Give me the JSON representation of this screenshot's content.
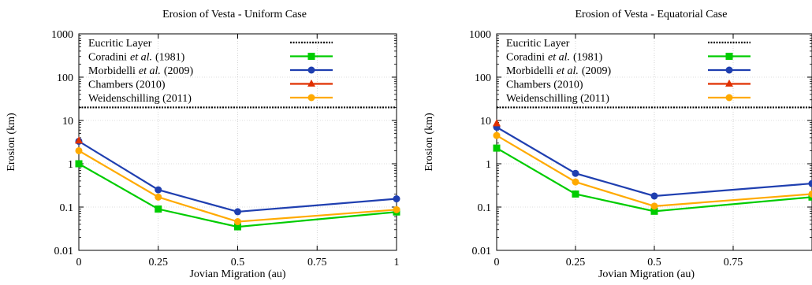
{
  "chart_data": [
    {
      "type": "line",
      "title": "Erosion of Vesta - Uniform Case",
      "xlabel": "Jovian Migration (au)",
      "ylabel": "Erosion (km)",
      "xlim": [
        0,
        1
      ],
      "ylim": [
        0.01,
        1000
      ],
      "yscale": "log",
      "grid": true,
      "legend_position": "top",
      "x_ticks": [
        {
          "value": 0,
          "label": "0"
        },
        {
          "value": 0.25,
          "label": "0.25"
        },
        {
          "value": 0.5,
          "label": "0.5"
        },
        {
          "value": 0.75,
          "label": "0.75"
        },
        {
          "value": 1,
          "label": "1"
        }
      ],
      "y_ticks": [
        {
          "value": 0.01,
          "label": "0.01"
        },
        {
          "value": 0.1,
          "label": "0.1"
        },
        {
          "value": 1,
          "label": "1"
        },
        {
          "value": 10,
          "label": "10"
        },
        {
          "value": 100,
          "label": "100"
        },
        {
          "value": 1000,
          "label": "1000"
        }
      ],
      "eucritic_layer": {
        "label": "Eucritic Layer",
        "value": 20
      },
      "series": [
        {
          "name": "Coradini",
          "name_italic": "et al.",
          "name_suffix": "(1981)",
          "color": "#00cc00",
          "marker": "square",
          "x": [
            0,
            0.25,
            0.5,
            1
          ],
          "y": [
            1.0,
            0.09,
            0.035,
            0.077
          ]
        },
        {
          "name": "Morbidelli",
          "name_italic": "et al.",
          "name_suffix": "(2009)",
          "color": "#1f3fb0",
          "marker": "circle",
          "x": [
            0,
            0.25,
            0.5,
            1
          ],
          "y": [
            3.3,
            0.25,
            0.078,
            0.155
          ]
        },
        {
          "name": "Chambers (2010)",
          "name_italic": "",
          "name_suffix": "",
          "color": "#e03000",
          "marker": "triangle",
          "x": [
            0
          ],
          "y": [
            3.4
          ]
        },
        {
          "name": "Weidenschilling (2011)",
          "name_italic": "",
          "name_suffix": "",
          "color": "#ffaa00",
          "marker": "circle",
          "x": [
            0,
            0.25,
            0.5,
            1
          ],
          "y": [
            2.0,
            0.17,
            0.046,
            0.087
          ]
        }
      ]
    },
    {
      "type": "line",
      "title": "Erosion of Vesta - Equatorial Case",
      "xlabel": "Jovian Migration (au)",
      "ylabel": "Erosion (km)",
      "xlim": [
        0,
        1
      ],
      "ylim": [
        0.01,
        1000
      ],
      "yscale": "log",
      "grid": true,
      "legend_position": "top",
      "x_ticks": [
        {
          "value": 0,
          "label": "0"
        },
        {
          "value": 0.25,
          "label": "0.25"
        },
        {
          "value": 0.5,
          "label": "0.5"
        },
        {
          "value": 0.75,
          "label": "0.75"
        }
      ],
      "y_ticks": [
        {
          "value": 0.01,
          "label": "0.01"
        },
        {
          "value": 0.1,
          "label": "0.1"
        },
        {
          "value": 1,
          "label": "1"
        },
        {
          "value": 10,
          "label": "10"
        },
        {
          "value": 100,
          "label": "100"
        },
        {
          "value": 1000,
          "label": "1000"
        }
      ],
      "eucritic_layer": {
        "label": "Eucritic Layer",
        "value": 20
      },
      "series": [
        {
          "name": "Coradini",
          "name_italic": "et al.",
          "name_suffix": "(1981)",
          "color": "#00cc00",
          "marker": "square",
          "x": [
            0,
            0.25,
            0.5,
            1
          ],
          "y": [
            2.3,
            0.2,
            0.08,
            0.17
          ]
        },
        {
          "name": "Morbidelli",
          "name_italic": "et al.",
          "name_suffix": "(2009)",
          "color": "#1f3fb0",
          "marker": "circle",
          "x": [
            0,
            0.25,
            0.5,
            1
          ],
          "y": [
            7.0,
            0.6,
            0.18,
            0.35
          ]
        },
        {
          "name": "Chambers (2010)",
          "name_italic": "",
          "name_suffix": "",
          "color": "#e03000",
          "marker": "triangle",
          "x": [
            0
          ],
          "y": [
            8.5
          ]
        },
        {
          "name": "Weidenschilling (2011)",
          "name_italic": "",
          "name_suffix": "",
          "color": "#ffaa00",
          "marker": "circle",
          "x": [
            0,
            0.25,
            0.5,
            1
          ],
          "y": [
            4.5,
            0.38,
            0.105,
            0.2
          ]
        }
      ]
    }
  ]
}
